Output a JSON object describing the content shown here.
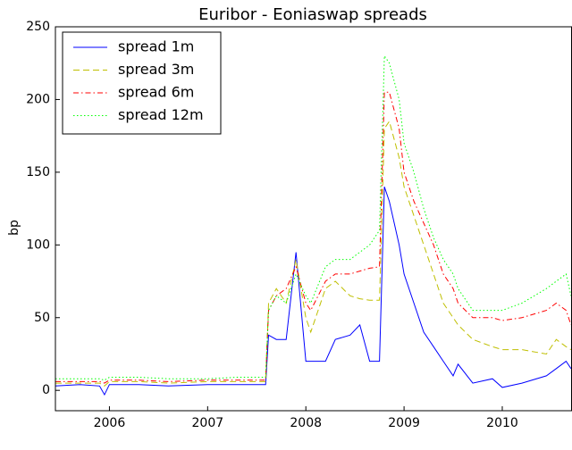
{
  "chart_data": {
    "type": "line",
    "title": "Euribor - Eoniaswap spreads",
    "y_label": "bp",
    "x": [
      2005.45,
      2005.7,
      2005.9,
      2005.95,
      2006.0,
      2006.3,
      2006.6,
      2007.0,
      2007.3,
      2007.59,
      2007.62,
      2007.7,
      2007.8,
      2007.9,
      2008.0,
      2008.05,
      2008.2,
      2008.3,
      2008.45,
      2008.55,
      2008.65,
      2008.75,
      2008.8,
      2008.85,
      2008.95,
      2009.0,
      2009.1,
      2009.2,
      2009.3,
      2009.4,
      2009.5,
      2009.55,
      2009.7,
      2009.9,
      2010.0,
      2010.2,
      2010.45,
      2010.55,
      2010.65,
      2010.7
    ],
    "series": [
      {
        "name": "spread 1m",
        "color": "#0000ff",
        "dash": "solid",
        "values": [
          3,
          4,
          3,
          -3,
          4,
          4,
          3,
          4,
          4,
          4,
          38,
          35,
          35,
          95,
          20,
          20,
          20,
          35,
          38,
          45,
          20,
          20,
          140,
          130,
          100,
          80,
          60,
          40,
          30,
          20,
          10,
          18,
          5,
          8,
          2,
          5,
          10,
          15,
          20,
          15
        ]
      },
      {
        "name": "spread 3m",
        "color": "#bfbf00",
        "dash": "dashed",
        "values": [
          5,
          5,
          5,
          3,
          6,
          6,
          5,
          6,
          6,
          6,
          60,
          70,
          60,
          90,
          50,
          40,
          70,
          75,
          65,
          63,
          62,
          62,
          180,
          185,
          160,
          140,
          120,
          100,
          80,
          60,
          50,
          45,
          35,
          30,
          28,
          28,
          25,
          35,
          30,
          28
        ]
      },
      {
        "name": "spread 6m",
        "color": "#ff0000",
        "dash": "dashdot",
        "values": [
          6,
          6,
          6,
          5,
          7,
          7,
          6,
          7,
          7,
          7,
          55,
          65,
          70,
          85,
          60,
          55,
          75,
          80,
          80,
          82,
          84,
          85,
          205,
          205,
          180,
          150,
          130,
          115,
          100,
          80,
          70,
          60,
          50,
          50,
          48,
          50,
          55,
          60,
          55,
          45
        ]
      },
      {
        "name": "spread 12m",
        "color": "#00ff00",
        "dash": "dotted",
        "values": [
          8,
          8,
          8,
          7,
          9,
          9,
          8,
          8,
          9,
          9,
          55,
          65,
          60,
          80,
          65,
          60,
          85,
          90,
          90,
          95,
          100,
          110,
          230,
          225,
          200,
          170,
          150,
          125,
          105,
          90,
          80,
          70,
          55,
          55,
          55,
          60,
          70,
          75,
          80,
          65
        ]
      }
    ],
    "xlim": [
      2005.45,
      2010.71
    ],
    "xticks": [
      2006,
      2007,
      2008,
      2009,
      2010
    ],
    "ylim": [
      -14,
      250
    ],
    "yticks": [
      0,
      50,
      100,
      150,
      200,
      250
    ],
    "legend": "upper left"
  }
}
